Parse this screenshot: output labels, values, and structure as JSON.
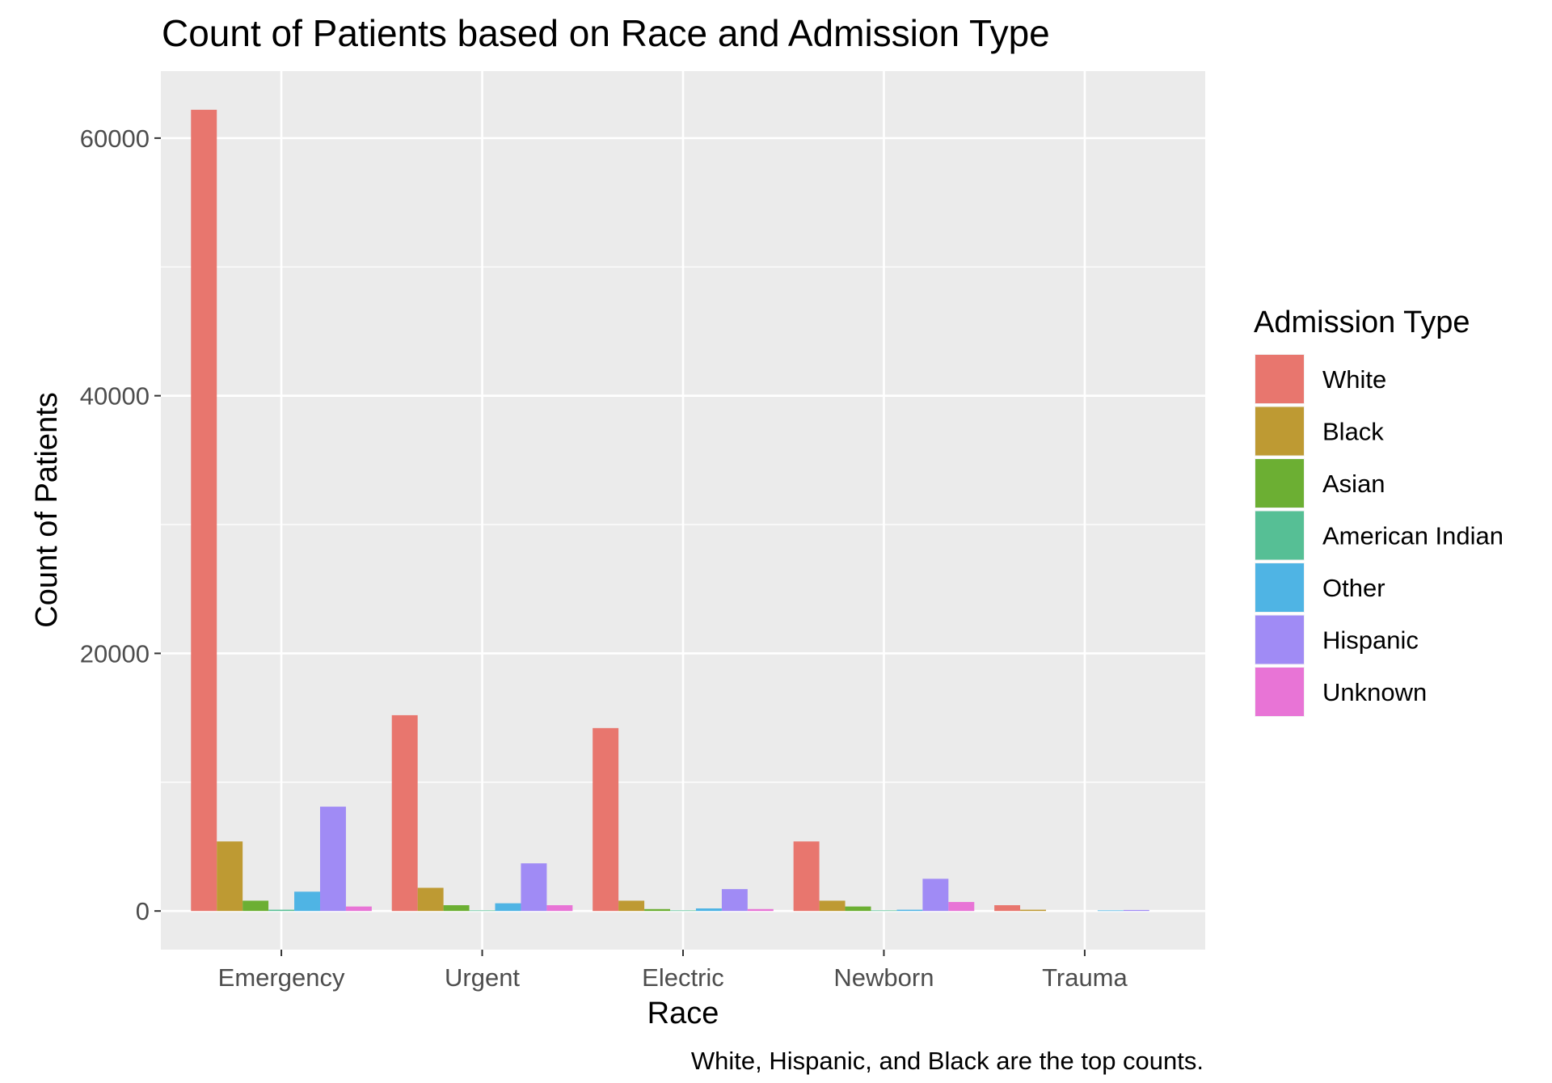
{
  "chart_data": {
    "type": "bar",
    "title": "Count of Patients based on Race and Admission Type",
    "xlabel": "Race",
    "ylabel": "Count of Patients",
    "caption": "White, Hispanic, and Black are the top counts.",
    "categories": [
      "Emergency",
      "Urgent",
      "Electric",
      "Newborn",
      "Trauma"
    ],
    "ylim": [
      -3000,
      65200
    ],
    "yticks": [
      0,
      20000,
      40000,
      60000
    ],
    "ytick_labels": [
      "0",
      "20000",
      "40000",
      "60000"
    ],
    "grid": true,
    "legend": {
      "title": "Admission Type",
      "placement": "right"
    },
    "series": [
      {
        "name": "White",
        "color": "#E8766E",
        "values": [
          62200,
          15200,
          14200,
          5400,
          450
        ]
      },
      {
        "name": "Black",
        "color": "#BE9A33",
        "values": [
          5400,
          1800,
          800,
          800,
          100
        ]
      },
      {
        "name": "Asian",
        "color": "#6CAF33",
        "values": [
          800,
          450,
          150,
          350,
          0
        ]
      },
      {
        "name": "American Indian",
        "color": "#56BF95",
        "values": [
          100,
          50,
          50,
          50,
          0
        ]
      },
      {
        "name": "Other",
        "color": "#4FB4E4",
        "values": [
          1500,
          600,
          200,
          100,
          50
        ]
      },
      {
        "name": "Hispanic",
        "color": "#A08BF5",
        "values": [
          8100,
          3700,
          1700,
          2500,
          80
        ]
      },
      {
        "name": "Unknown",
        "color": "#E874D6",
        "values": [
          350,
          450,
          150,
          700,
          0
        ]
      }
    ]
  }
}
